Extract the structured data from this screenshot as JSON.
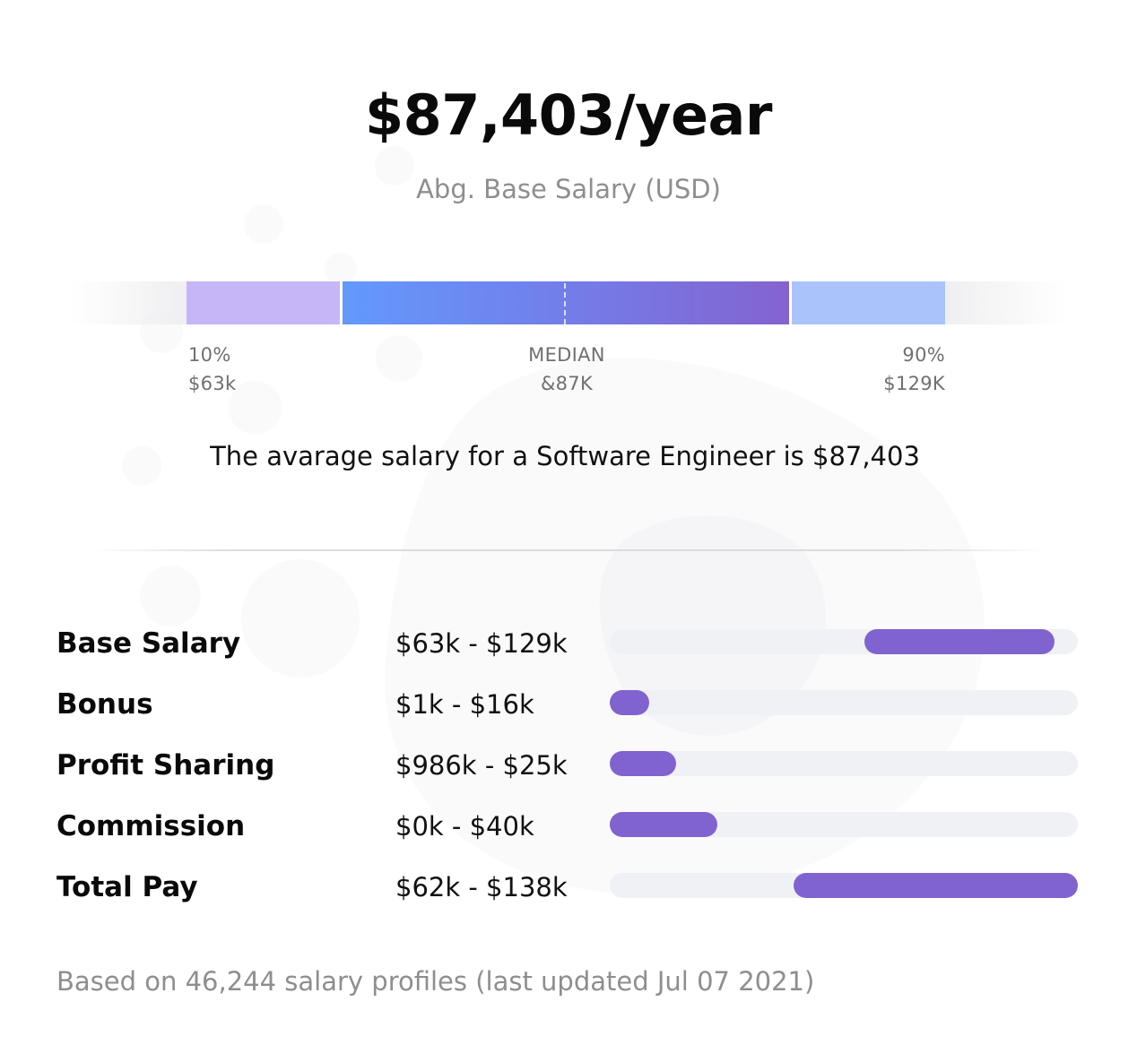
{
  "header": {
    "amount": "$87,403/year",
    "subtitle": "Abg. Base Salary (USD)"
  },
  "distribution": {
    "low": {
      "pct": "10%",
      "value": "$63k"
    },
    "median": {
      "pct": "MEDIAN",
      "value": "&87K"
    },
    "high": {
      "pct": "90%",
      "value": "$129K"
    }
  },
  "summary": "The avarage salary for a Software Engineer is $87,403",
  "chart_data": {
    "type": "bar",
    "orientation": "horizontal-range",
    "categories": [
      "Base Salary",
      "Bonus",
      "Profit Sharing",
      "Commission",
      "Total Pay"
    ],
    "range_labels": [
      "$63k - $129k",
      "$1k - $16k",
      "$986k - $25k",
      "$0k - $40k",
      "$62k - $138k"
    ],
    "bar_start": [
      0.545,
      0.0,
      0.0,
      0.0,
      0.392
    ],
    "bar_end": [
      0.952,
      0.085,
      0.142,
      0.23,
      1.0
    ],
    "bar_color": "#8163cf",
    "track_color": "#f0f1f5"
  },
  "footer": "Based on 46,244 salary profiles (last updated Jul 07 2021)",
  "colors": {
    "seg_low": "#c7b6f7",
    "seg_mid_start": "#6399fb",
    "seg_mid_end": "#8463cf",
    "seg_high": "#aac4fb"
  }
}
